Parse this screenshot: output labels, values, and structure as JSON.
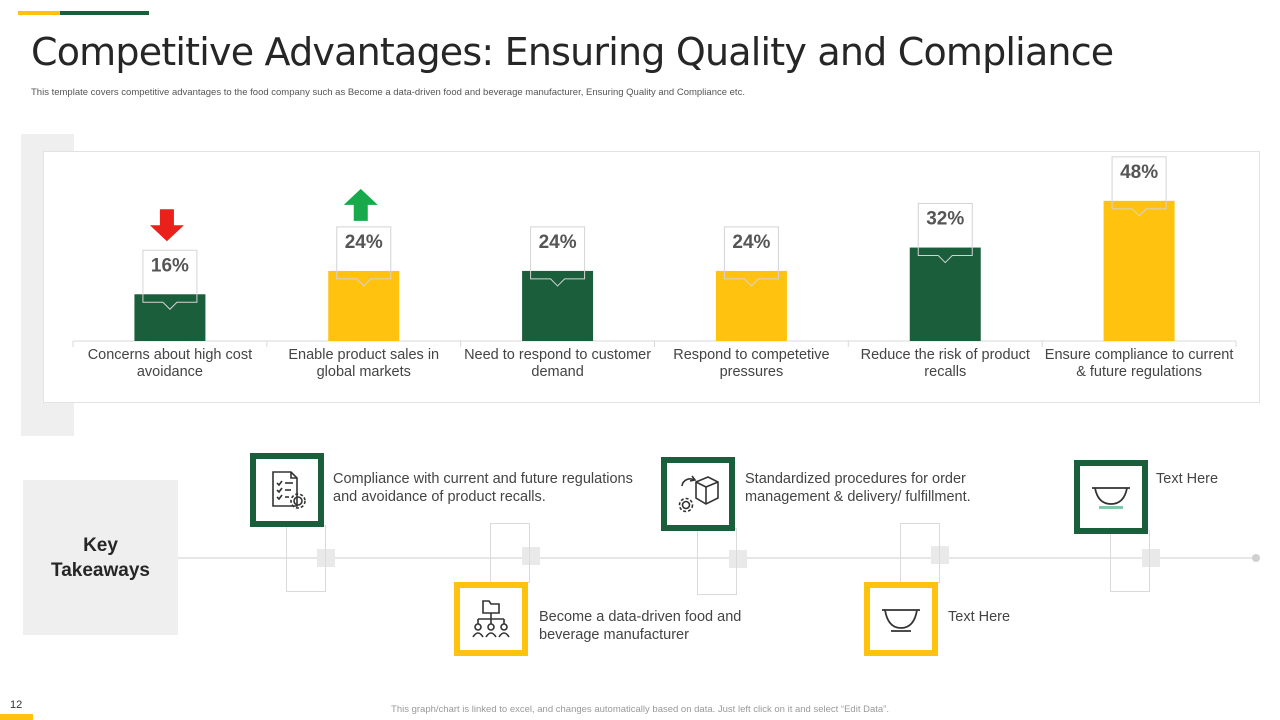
{
  "header": {
    "title": "Competitive Advantages: Ensuring Quality and Compliance",
    "subtitle": "This template covers competitive advantages to the food company such as Become a data-driven food and beverage manufacturer, Ensuring Quality and Compliance etc."
  },
  "colors": {
    "green": "#1B5E3B",
    "yellow": "#FFC20E",
    "arrow_down": "#E8211B",
    "arrow_up": "#18A94B"
  },
  "chart_data": {
    "type": "bar",
    "title": "",
    "xlabel": "",
    "ylabel": "",
    "ylim": [
      0,
      50
    ],
    "categories": [
      "Concerns about high cost avoidance",
      "Enable product sales in global markets",
      "Need to respond to customer demand",
      "Respond to competetive pressures",
      "Reduce the risk of product recalls",
      "Ensure compliance to current & future regulations"
    ],
    "category_lines": [
      [
        "Concerns about high cost",
        "avoidance"
      ],
      [
        "Enable product sales in",
        "global markets"
      ],
      [
        "Need to respond to customer",
        "demand"
      ],
      [
        "Respond to competetive",
        "pressures"
      ],
      [
        "Reduce the risk of product",
        "recalls"
      ],
      [
        "Ensure compliance to current",
        "& future regulations"
      ]
    ],
    "values": [
      16,
      24,
      24,
      24,
      32,
      48
    ],
    "data_labels": [
      "16%",
      "24%",
      "24%",
      "24%",
      "32%",
      "48%"
    ],
    "bar_colors": [
      "green",
      "yellow",
      "green",
      "yellow",
      "green",
      "yellow"
    ],
    "indicators": [
      {
        "index": 0,
        "direction": "down",
        "color": "arrow_down"
      },
      {
        "index": 1,
        "direction": "up",
        "color": "arrow_up"
      }
    ]
  },
  "takeaways": {
    "label": "Key\nTakeaways",
    "items": [
      {
        "icon": "checklist-gear-icon",
        "text": "Compliance with current and future regulations and avoidance of product recalls."
      },
      {
        "icon": "data-hierarchy-icon",
        "text": "Become a data-driven food and beverage manufacturer"
      },
      {
        "icon": "package-gear-icon",
        "text": "Standardized procedures for order management & delivery/ fulfillment."
      },
      {
        "icon": "bowl-icon",
        "text": "Text Here"
      },
      {
        "icon": "bowl-icon",
        "text": "Text Here"
      }
    ]
  },
  "footer": {
    "page_number": "12",
    "note": "This graph/chart is linked to excel, and changes automatically based on data. Just left click on it and select “Edit Data”."
  }
}
